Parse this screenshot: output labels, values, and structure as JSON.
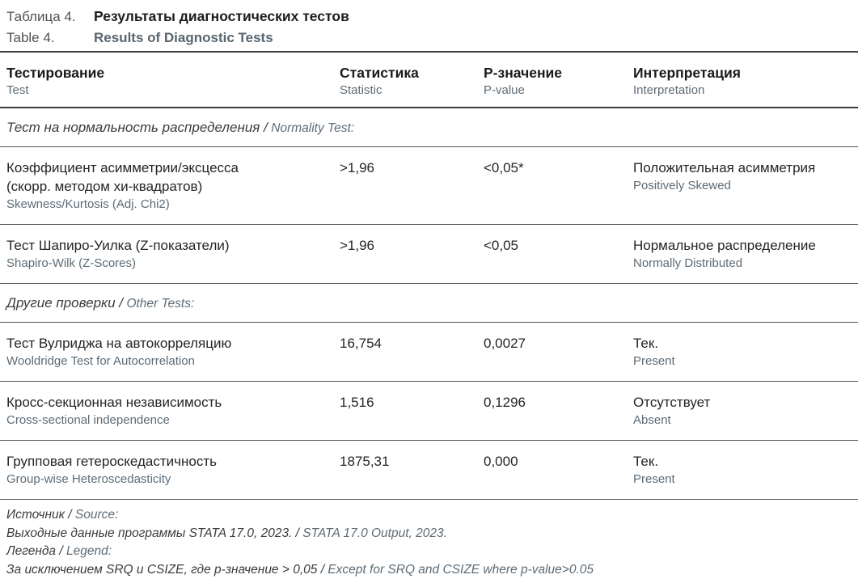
{
  "title": {
    "ru_label": "Таблица 4.",
    "ru_title": "Результаты диагностических тестов",
    "en_label": "Table 4.",
    "en_title": "Results of Diagnostic Tests"
  },
  "columns": [
    {
      "ru": "Тестирование",
      "en": "Test"
    },
    {
      "ru": "Статистика",
      "en": "Statistic"
    },
    {
      "ru": "P-значение",
      "en": "P-value"
    },
    {
      "ru": "Интерпретация",
      "en": "Interpretation"
    }
  ],
  "sections": [
    {
      "header_ru": "Тест на нормальность распределения /",
      "header_en": "Normality Test:",
      "rows": [
        {
          "test_ru": "Коэффициент асимметрии/эксцесса (скорр. методом хи-квадратов)",
          "test_en": "Skewness/Kurtosis (Adj. Chi2)",
          "statistic": ">1,96",
          "p_value": "<0,05*",
          "interpretation_ru": "Положительная асимметрия",
          "interpretation_en": "Positively Skewed"
        },
        {
          "test_ru": "Тест Шапиро-Уилка (Z-показатели)",
          "test_en": "Shapiro-Wilk (Z-Scores)",
          "statistic": ">1,96",
          "p_value": "<0,05",
          "interpretation_ru": "Нормальное распределение",
          "interpretation_en": "Normally Distributed"
        }
      ]
    },
    {
      "header_ru": "Другие проверки /",
      "header_en": "Other Tests:",
      "rows": [
        {
          "test_ru": "Тест Вулриджа на автокорреляцию",
          "test_en": "Wooldridge Test for Autocorrelation",
          "statistic": "16,754",
          "p_value": "0,0027",
          "interpretation_ru": "Тек.",
          "interpretation_en": "Present"
        },
        {
          "test_ru": "Кросс-секционная независимость",
          "test_en": "Cross-sectional independence",
          "statistic": "1,516",
          "p_value": "0,1296",
          "interpretation_ru": "Отсутствует",
          "interpretation_en": "Absent"
        },
        {
          "test_ru": "Групповая гетероскедастичность",
          "test_en": "Group-wise Heteroscedasticity",
          "statistic": "1875,31",
          "p_value": "0,000",
          "interpretation_ru": "Тек.",
          "interpretation_en": "Present"
        }
      ]
    }
  ],
  "footer": {
    "lines": [
      {
        "ru": "Источник /",
        "en": "Source:"
      },
      {
        "ru": "Выходные данные программы STATA 17.0, 2023. /",
        "en": "STATA 17.0 Output, 2023."
      },
      {
        "ru": "Легенда /",
        "en": "Legend:"
      },
      {
        "ru": "За исключением SRQ и CSIZE, где p-значение > 0,05 /",
        "en": "Except for SRQ and CSIZE where p-value>0.05"
      }
    ]
  },
  "colors": {
    "background": "#ffffff",
    "text_primary": "#232528",
    "text_secondary": "#5d6b76",
    "title_label": "#505254",
    "rule_dark": "#3d3e40",
    "rule_light": "#55565a"
  }
}
